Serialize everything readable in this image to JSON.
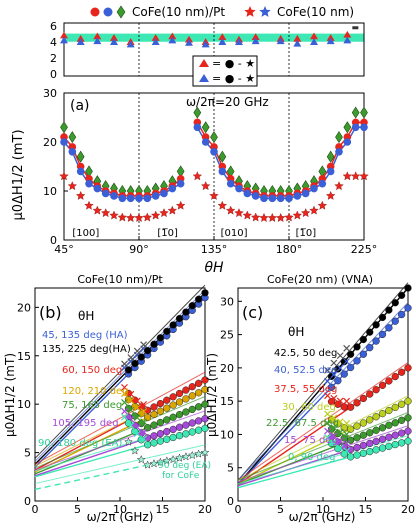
{
  "colors": {
    "red": "#e8251c",
    "blue": "#3a5fd6",
    "green": "#3d9a2d",
    "band": "#3ee8b4",
    "gold": "#d9a600",
    "purple": "#a64bd9",
    "lime": "#bccf1c"
  },
  "chart_data": [
    {
      "type": "scatter",
      "id": "top",
      "legend": [
        "CoFe(10 nm)/Pt",
        "CoFe(10 nm)"
      ],
      "legend_box": [
        "= ● - ★",
        "= ● - ★"
      ],
      "ylim": [
        0,
        6.5
      ],
      "yticks": [
        "0",
        "2",
        "4",
        "6"
      ],
      "band": [
        4.2,
        5.2
      ],
      "x": [
        45,
        55,
        65,
        75,
        85,
        100,
        110,
        120,
        130,
        140,
        150,
        160,
        175,
        185,
        195,
        205,
        215,
        220
      ],
      "series": [
        {
          "name": "red triangle",
          "values": [
            5.0,
            4.6,
            4.9,
            4.7,
            4.2,
            4.7,
            4.9,
            4.5,
            4.2,
            4.8,
            4.5,
            4.8,
            4.6,
            4.6,
            4.9,
            4.7,
            5.1,
            6.0
          ]
        },
        {
          "name": "blue triangle",
          "values": [
            4.4,
            4.2,
            4.3,
            4.2,
            3.9,
            4.2,
            4.4,
            4.1,
            3.9,
            4.2,
            4.2,
            4.3,
            4.3,
            4.0,
            4.2,
            4.3,
            4.4,
            6.0
          ]
        }
      ]
    },
    {
      "type": "scatter",
      "id": "a",
      "panel_label": "(a)",
      "annotation": "ω/2π=20 GHz",
      "xlabel": "θH",
      "ylabel": "μ0ΔH1/2 (mT)",
      "xlim": [
        45,
        225
      ],
      "ylim": [
        0,
        30
      ],
      "xticks": [
        "45°",
        "90°",
        "135°",
        "180°",
        "225°"
      ],
      "yticks": [
        "0",
        "10",
        "20",
        "30"
      ],
      "directions": [
        "[100]",
        "[1̅0]",
        "[010]",
        "[1̅0]"
      ],
      "x": [
        45,
        50,
        55,
        60,
        65,
        70,
        75,
        80,
        85,
        90,
        95,
        100,
        105,
        110,
        115,
        125,
        130,
        135,
        140,
        145,
        150,
        155,
        160,
        165,
        170,
        175,
        180,
        185,
        190,
        195,
        200,
        205,
        210,
        215,
        220,
        225
      ],
      "series": [
        {
          "name": "green diamond",
          "values": [
            23,
            21,
            17,
            14,
            12,
            11,
            10.5,
            10,
            10,
            10,
            10,
            10.5,
            11,
            12,
            14,
            26,
            23,
            21,
            17,
            14,
            12,
            11,
            10.5,
            10,
            10,
            10,
            10,
            10.5,
            11,
            12,
            14,
            17,
            21,
            23,
            26,
            26
          ]
        },
        {
          "name": "red circle",
          "values": [
            21,
            19,
            15,
            12.5,
            11,
            10,
            9.5,
            9,
            9,
            9,
            9,
            9.5,
            10,
            11,
            12.5,
            24,
            21,
            19,
            15,
            12.5,
            11,
            10,
            9.5,
            9,
            9,
            9,
            9,
            9.5,
            10,
            11,
            12.5,
            15,
            19,
            21,
            24,
            24
          ]
        },
        {
          "name": "blue circle",
          "values": [
            20,
            18,
            14,
            11.5,
            10.5,
            9.5,
            9,
            8.5,
            8.5,
            8.5,
            8.5,
            9,
            9.5,
            10.5,
            11.5,
            23,
            20,
            18,
            14,
            11.5,
            10.5,
            9.5,
            9,
            8.5,
            8.5,
            8.5,
            8.5,
            9,
            9.5,
            10.5,
            11.5,
            14,
            18,
            20,
            23,
            23
          ]
        },
        {
          "name": "star",
          "values": [
            13,
            11,
            9,
            7,
            6,
            5.5,
            5,
            4.6,
            4.5,
            4.5,
            4.6,
            5,
            5.5,
            6,
            7,
            13,
            11,
            9,
            7,
            6,
            5.5,
            5,
            4.6,
            4.5,
            4.5,
            4.5,
            4.6,
            5,
            5.5,
            6,
            7,
            9,
            11,
            13,
            13,
            13
          ]
        }
      ]
    },
    {
      "type": "line",
      "id": "b",
      "title": "CoFe(10 nm)/Pt",
      "panel_label": "(b)",
      "legend_title": "θH",
      "xlabel": "ω/2π (GHz)",
      "ylabel": "μ0ΔH1/2 (mT)",
      "xlim": [
        0,
        20
      ],
      "ylim": [
        0,
        22
      ],
      "xticks": [
        "0",
        "5",
        "10",
        "15",
        "20"
      ],
      "yticks": [
        "0",
        "5",
        "10",
        "15",
        "20"
      ],
      "series": [
        {
          "name": "45, 135 deg (HA)",
          "color": "#3a5fd6",
          "values": [
            3.5,
            21
          ]
        },
        {
          "name": "135, 225 deg(HA)",
          "color": "#000000",
          "values": [
            3.8,
            21.5
          ]
        },
        {
          "name": "60, 150 deg",
          "color": "#e8251c",
          "values": [
            3.2,
            12.5
          ]
        },
        {
          "name": "120, 210 deg",
          "color": "#d9a600",
          "values": [
            3.0,
            11.5
          ]
        },
        {
          "name": "75, 165 deg",
          "color": "#3d9a2d",
          "values": [
            2.8,
            10
          ]
        },
        {
          "name": "105, 195 deg",
          "color": "#a64bd9",
          "values": [
            2.6,
            8.5
          ]
        },
        {
          "name": "90, 180 deg (EA)",
          "color": "#3ee8b4",
          "values": [
            2.5,
            7.5
          ]
        },
        {
          "name": "90 deg (EA) for CoFe",
          "color": "#3ee8b4",
          "values": [
            1.2,
            5
          ]
        }
      ]
    },
    {
      "type": "line",
      "id": "c",
      "title": "CoFe(20 nm) (VNA)",
      "panel_label": "(c)",
      "legend_title": "θH",
      "xlabel": "ω/2π (GHz)",
      "ylabel": "μ0ΔH1/2 (mT)",
      "xlim": [
        0,
        20
      ],
      "ylim": [
        0,
        32
      ],
      "xticks": [
        "0",
        "5",
        "10",
        "15",
        "20"
      ],
      "yticks": [
        "0",
        "5",
        "10",
        "15",
        "20",
        "25",
        "30"
      ],
      "series": [
        {
          "name": "42.5, 50 deg",
          "color": "#000000",
          "values": [
            2.5,
            32
          ]
        },
        {
          "name": "40, 52.5 deg",
          "color": "#3a5fd6",
          "values": [
            2.5,
            29
          ]
        },
        {
          "name": "37.5, 55 deg",
          "color": "#e8251c",
          "values": [
            2.5,
            20
          ]
        },
        {
          "name": "30, 60 deg",
          "color": "#bccf1c",
          "values": [
            2.5,
            15
          ]
        },
        {
          "name": "22.5, 67.5 deg",
          "color": "#3d9a2d",
          "values": [
            2.5,
            12.5
          ]
        },
        {
          "name": "15, 75 deg",
          "color": "#a64bd9",
          "values": [
            2.3,
            10.5
          ]
        },
        {
          "name": "0, 90 deg",
          "color": "#3ee8b4",
          "values": [
            2.0,
            9
          ]
        }
      ]
    }
  ]
}
